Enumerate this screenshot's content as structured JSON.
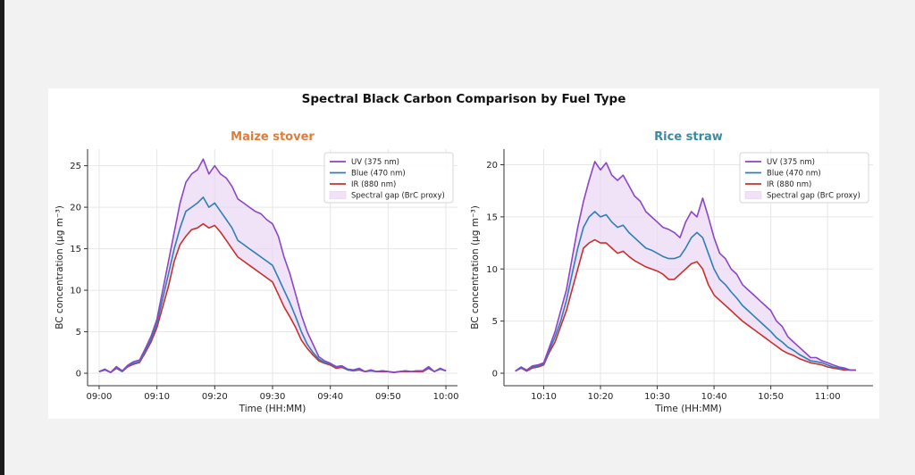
{
  "figure_title": "Spectral Black Carbon Comparison by Fuel Type",
  "colors": {
    "uv": "#8b45c6",
    "blue": "#2f7fb4",
    "ir": "#c9302c",
    "band_fill": "#e9d5f3",
    "maize_title": "#e07b39",
    "rice_title": "#3a8aa5"
  },
  "chart_data": [
    {
      "type": "line",
      "title": "Maize stover",
      "xlabel": "Time (HH:MM)",
      "ylabel": "BC concentration (µg m⁻³)",
      "xlim": [
        "08:58",
        "10:02"
      ],
      "ylim": [
        -1.5,
        27
      ],
      "xticks": [
        "09:00",
        "09:10",
        "09:20",
        "09:30",
        "09:40",
        "09:50",
        "10:00"
      ],
      "yticks": [
        0,
        5,
        10,
        15,
        20,
        25
      ],
      "grid": true,
      "legend_position": "top-right",
      "legend": [
        "UV (375 nm)",
        "Blue (470 nm)",
        "IR (880 nm)",
        "Spectral gap (BrC proxy)"
      ],
      "x": [
        "09:00",
        "09:01",
        "09:02",
        "09:03",
        "09:04",
        "09:05",
        "09:06",
        "09:07",
        "09:08",
        "09:09",
        "09:10",
        "09:11",
        "09:12",
        "09:13",
        "09:14",
        "09:15",
        "09:16",
        "09:17",
        "09:18",
        "09:19",
        "09:20",
        "09:21",
        "09:22",
        "09:23",
        "09:24",
        "09:25",
        "09:26",
        "09:27",
        "09:28",
        "09:29",
        "09:30",
        "09:31",
        "09:32",
        "09:33",
        "09:34",
        "09:35",
        "09:36",
        "09:37",
        "09:38",
        "09:39",
        "09:40",
        "09:41",
        "09:42",
        "09:43",
        "09:44",
        "09:45",
        "09:46",
        "09:47",
        "09:48",
        "09:49",
        "09:50",
        "09:51",
        "09:52",
        "09:53",
        "09:54",
        "09:55",
        "09:56",
        "09:57",
        "09:58",
        "09:59",
        "10:00"
      ],
      "series": [
        {
          "name": "UV (375 nm)",
          "values": [
            0.2,
            0.5,
            0.1,
            0.8,
            0.3,
            1.0,
            1.4,
            1.6,
            3.0,
            4.5,
            6.5,
            10.0,
            13.5,
            17.0,
            20.5,
            23.0,
            24.0,
            24.5,
            25.8,
            24.0,
            25.0,
            24.0,
            23.5,
            22.5,
            21.0,
            20.5,
            20.0,
            19.5,
            19.2,
            18.5,
            18.0,
            16.5,
            14.0,
            12.0,
            9.5,
            7.0,
            5.0,
            3.5,
            2.0,
            1.5,
            1.2,
            0.8,
            0.9,
            0.5,
            0.4,
            0.6,
            0.2,
            0.4,
            0.2,
            0.3,
            0.2,
            0.1,
            0.2,
            0.3,
            0.2,
            0.3,
            0.3,
            0.8,
            0.2,
            0.6,
            0.3
          ]
        },
        {
          "name": "Blue (470 nm)",
          "values": [
            0.2,
            0.4,
            0.1,
            0.7,
            0.2,
            0.9,
            1.2,
            1.4,
            2.7,
            4.1,
            6.0,
            9.0,
            12.0,
            15.0,
            17.5,
            19.5,
            20.0,
            20.5,
            21.2,
            20.0,
            20.5,
            19.5,
            18.5,
            17.5,
            16.0,
            15.5,
            15.0,
            14.5,
            14.0,
            13.5,
            13.0,
            11.5,
            10.0,
            8.5,
            6.8,
            5.0,
            3.5,
            2.5,
            1.7,
            1.3,
            1.1,
            0.7,
            0.8,
            0.4,
            0.3,
            0.5,
            0.2,
            0.3,
            0.2,
            0.3,
            0.2,
            0.1,
            0.2,
            0.3,
            0.2,
            0.3,
            0.3,
            0.7,
            0.2,
            0.5,
            0.3
          ]
        },
        {
          "name": "IR (880 nm)",
          "values": [
            0.2,
            0.4,
            0.1,
            0.6,
            0.2,
            0.8,
            1.1,
            1.3,
            2.5,
            3.8,
            5.5,
            8.0,
            10.5,
            13.5,
            15.5,
            16.5,
            17.3,
            17.5,
            18.0,
            17.5,
            17.8,
            17.0,
            16.0,
            15.0,
            14.0,
            13.5,
            13.0,
            12.5,
            12.0,
            11.5,
            11.0,
            9.5,
            8.0,
            6.8,
            5.5,
            4.0,
            3.0,
            2.2,
            1.5,
            1.2,
            1.0,
            0.6,
            0.7,
            0.4,
            0.3,
            0.4,
            0.2,
            0.3,
            0.2,
            0.2,
            0.2,
            0.1,
            0.2,
            0.2,
            0.2,
            0.2,
            0.2,
            0.6,
            0.2,
            0.5,
            0.3
          ]
        }
      ]
    },
    {
      "type": "line",
      "title": "Rice straw",
      "xlabel": "Time (HH:MM)",
      "ylabel": "BC concentration (µg m⁻³)",
      "xlim": [
        "10:03",
        "11:08"
      ],
      "ylim": [
        -1.2,
        21.5
      ],
      "xticks": [
        "10:10",
        "10:20",
        "10:30",
        "10:40",
        "10:50",
        "11:00"
      ],
      "yticks": [
        0,
        5,
        10,
        15,
        20
      ],
      "grid": true,
      "legend_position": "top-right",
      "legend": [
        "UV (375 nm)",
        "Blue (470 nm)",
        "IR (880 nm)",
        "Spectral gap (BrC proxy)"
      ],
      "x": [
        "10:05",
        "10:06",
        "10:07",
        "10:08",
        "10:09",
        "10:10",
        "10:11",
        "10:12",
        "10:13",
        "10:14",
        "10:15",
        "10:16",
        "10:17",
        "10:18",
        "10:19",
        "10:20",
        "10:21",
        "10:22",
        "10:23",
        "10:24",
        "10:25",
        "10:26",
        "10:27",
        "10:28",
        "10:29",
        "10:30",
        "10:31",
        "10:32",
        "10:33",
        "10:34",
        "10:35",
        "10:36",
        "10:37",
        "10:38",
        "10:39",
        "10:40",
        "10:41",
        "10:42",
        "10:43",
        "10:44",
        "10:45",
        "10:46",
        "10:47",
        "10:48",
        "10:49",
        "10:50",
        "10:51",
        "10:52",
        "10:53",
        "10:54",
        "10:55",
        "10:56",
        "10:57",
        "10:58",
        "10:59",
        "11:00",
        "11:01",
        "11:02",
        "11:03",
        "11:04",
        "11:05"
      ],
      "series": [
        {
          "name": "UV (375 nm)",
          "values": [
            0.2,
            0.6,
            0.3,
            0.7,
            0.8,
            1.0,
            2.5,
            4.0,
            6.0,
            8.0,
            11.0,
            14.0,
            16.5,
            18.5,
            20.3,
            19.5,
            20.2,
            19.0,
            18.5,
            19.0,
            18.0,
            17.0,
            16.5,
            15.5,
            15.0,
            14.5,
            14.0,
            13.8,
            13.5,
            13.0,
            14.5,
            15.5,
            15.0,
            16.8,
            15.0,
            13.0,
            11.5,
            11.0,
            10.0,
            9.5,
            8.5,
            8.0,
            7.5,
            7.0,
            6.5,
            6.0,
            5.0,
            4.5,
            3.5,
            3.0,
            2.5,
            2.0,
            1.5,
            1.5,
            1.2,
            1.0,
            0.8,
            0.6,
            0.5,
            0.3,
            0.3
          ]
        },
        {
          "name": "Blue (470 nm)",
          "values": [
            0.2,
            0.5,
            0.3,
            0.6,
            0.7,
            0.9,
            2.2,
            3.5,
            5.0,
            7.0,
            9.5,
            12.0,
            14.0,
            15.0,
            15.5,
            15.0,
            15.2,
            14.5,
            14.0,
            14.2,
            13.5,
            13.0,
            12.5,
            12.0,
            11.8,
            11.5,
            11.2,
            11.0,
            11.0,
            11.2,
            12.0,
            13.0,
            13.5,
            13.0,
            11.5,
            10.0,
            9.0,
            8.5,
            7.8,
            7.2,
            6.5,
            6.0,
            5.5,
            5.0,
            4.5,
            4.0,
            3.4,
            3.0,
            2.5,
            2.2,
            1.8,
            1.5,
            1.2,
            1.1,
            1.0,
            0.8,
            0.6,
            0.5,
            0.4,
            0.3,
            0.3
          ]
        },
        {
          "name": "IR (880 nm)",
          "values": [
            0.2,
            0.5,
            0.2,
            0.5,
            0.6,
            0.8,
            2.0,
            3.0,
            4.5,
            6.0,
            8.0,
            10.0,
            12.0,
            12.5,
            12.8,
            12.5,
            12.5,
            12.0,
            11.5,
            11.7,
            11.2,
            10.8,
            10.5,
            10.2,
            10.0,
            9.8,
            9.5,
            9.0,
            9.0,
            9.5,
            10.0,
            10.5,
            10.7,
            10.0,
            8.5,
            7.5,
            7.0,
            6.5,
            6.0,
            5.5,
            5.0,
            4.6,
            4.2,
            3.8,
            3.4,
            3.0,
            2.6,
            2.2,
            1.9,
            1.7,
            1.4,
            1.2,
            1.0,
            0.9,
            0.8,
            0.6,
            0.5,
            0.4,
            0.3,
            0.3,
            0.3
          ]
        }
      ]
    }
  ]
}
